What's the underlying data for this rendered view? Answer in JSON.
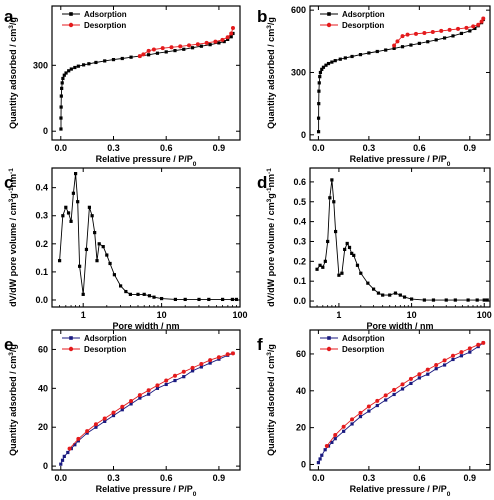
{
  "chart_data": [
    {
      "panel": "a",
      "type": "line",
      "xlabel": "Relative pressure / P/P0",
      "ylabel": "Quantity adsorbed / cm3/g",
      "xlim": [
        -0.05,
        1.02
      ],
      "ylim": [
        -40,
        570
      ],
      "xticks": [
        0.0,
        0.3,
        0.6,
        0.9
      ],
      "xticklabels": [
        "0.0",
        "0.3",
        "0.6",
        "0.9"
      ],
      "yticks": [
        0,
        300
      ],
      "yticklabels": [
        "0",
        "300"
      ],
      "legend": "top-left",
      "series": [
        {
          "name": "Adsorption",
          "color": "#000000",
          "marker": "square",
          "x": [
            0.001,
            0.001,
            0.002,
            0.003,
            0.005,
            0.008,
            0.012,
            0.02,
            0.03,
            0.045,
            0.06,
            0.08,
            0.1,
            0.13,
            0.16,
            0.2,
            0.25,
            0.3,
            0.35,
            0.4,
            0.45,
            0.5,
            0.55,
            0.6,
            0.65,
            0.7,
            0.75,
            0.8,
            0.85,
            0.9,
            0.93,
            0.95,
            0.97,
            0.98
          ],
          "y": [
            10,
            60,
            110,
            160,
            195,
            220,
            240,
            255,
            265,
            275,
            283,
            290,
            296,
            302,
            307,
            313,
            320,
            326,
            331,
            337,
            342,
            348,
            355,
            361,
            367,
            373,
            380,
            387,
            394,
            402,
            408,
            418,
            430,
            445
          ]
        },
        {
          "name": "Desorption",
          "color": "#e41a1c",
          "marker": "circle",
          "x": [
            0.98,
            0.97,
            0.95,
            0.92,
            0.88,
            0.83,
            0.78,
            0.73,
            0.68,
            0.63,
            0.58,
            0.53,
            0.5,
            0.47,
            0.45
          ],
          "y": [
            470,
            445,
            428,
            416,
            408,
            402,
            396,
            391,
            386,
            382,
            378,
            372,
            366,
            350,
            342
          ]
        }
      ]
    },
    {
      "panel": "b",
      "type": "line",
      "xlabel": "Relative pressure / P/P0",
      "ylabel": "Quantity adsorbed / cm3/g",
      "xlim": [
        -0.05,
        1.02
      ],
      "ylim": [
        -25,
        620
      ],
      "xticks": [
        0.0,
        0.3,
        0.6,
        0.9
      ],
      "xticklabels": [
        "0.0",
        "0.3",
        "0.6",
        "0.9"
      ],
      "yticks": [
        0,
        300,
        600
      ],
      "yticklabels": [
        "0",
        "300",
        "600"
      ],
      "legend": "top-left",
      "series": [
        {
          "name": "Adsorption",
          "color": "#000000",
          "marker": "square",
          "x": [
            0.001,
            0.001,
            0.002,
            0.003,
            0.005,
            0.008,
            0.012,
            0.02,
            0.03,
            0.045,
            0.06,
            0.08,
            0.1,
            0.13,
            0.16,
            0.2,
            0.25,
            0.3,
            0.35,
            0.4,
            0.45,
            0.5,
            0.55,
            0.6,
            0.65,
            0.7,
            0.75,
            0.8,
            0.85,
            0.9,
            0.93,
            0.95,
            0.97,
            0.98
          ],
          "y": [
            15,
            80,
            150,
            210,
            250,
            280,
            300,
            315,
            325,
            335,
            343,
            350,
            357,
            364,
            370,
            377,
            386,
            394,
            401,
            408,
            416,
            424,
            432,
            440,
            448,
            457,
            466,
            476,
            488,
            500,
            512,
            525,
            540,
            555
          ]
        },
        {
          "name": "Desorption",
          "color": "#e41a1c",
          "marker": "circle",
          "x": [
            0.98,
            0.97,
            0.95,
            0.92,
            0.88,
            0.83,
            0.78,
            0.73,
            0.68,
            0.63,
            0.58,
            0.53,
            0.5,
            0.47,
            0.45
          ],
          "y": [
            560,
            545,
            530,
            522,
            515,
            510,
            505,
            500,
            495,
            490,
            486,
            482,
            475,
            450,
            430
          ]
        }
      ]
    },
    {
      "panel": "c",
      "type": "line",
      "xlabel": "Pore width / nm",
      "ylabel": "dV/dW pore volume / cm3g-1nm-1",
      "xscale": "log",
      "xlim": [
        0.4,
        100
      ],
      "ylim": [
        -0.025,
        0.47
      ],
      "xticks": [
        1,
        10,
        100
      ],
      "xticklabels": [
        "1",
        "10",
        "100"
      ],
      "yticks": [
        0.0,
        0.1,
        0.2,
        0.3,
        0.4
      ],
      "yticklabels": [
        "0.0",
        "0.1",
        "0.2",
        "0.3",
        "0.4"
      ],
      "series": [
        {
          "name": "",
          "color": "#000000",
          "marker": "square",
          "x": [
            0.5,
            0.55,
            0.6,
            0.65,
            0.7,
            0.75,
            0.8,
            0.85,
            0.9,
            1.0,
            1.1,
            1.2,
            1.3,
            1.4,
            1.5,
            1.6,
            1.8,
            2.0,
            2.2,
            2.5,
            3.0,
            3.5,
            4.0,
            5.0,
            6.0,
            7.0,
            8.0,
            10,
            15,
            20,
            30,
            40,
            60,
            80,
            90
          ],
          "y": [
            0.14,
            0.3,
            0.33,
            0.31,
            0.28,
            0.38,
            0.45,
            0.35,
            0.12,
            0.02,
            0.18,
            0.33,
            0.3,
            0.24,
            0.14,
            0.2,
            0.19,
            0.16,
            0.13,
            0.09,
            0.05,
            0.03,
            0.02,
            0.02,
            0.02,
            0.015,
            0.01,
            0.005,
            0.002,
            0.002,
            0.002,
            0.002,
            0.002,
            0.002,
            0.002
          ]
        }
      ]
    },
    {
      "panel": "d",
      "type": "line",
      "xlabel": "Pore width / nm",
      "ylabel": "dV/dW pore volume / cm3g-1nm-1",
      "xscale": "log",
      "xlim": [
        0.4,
        120
      ],
      "ylim": [
        -0.03,
        0.67
      ],
      "xticks": [
        1,
        10,
        100
      ],
      "xticklabels": [
        "1",
        "10",
        "100"
      ],
      "yticks": [
        0.0,
        0.1,
        0.2,
        0.3,
        0.4,
        0.5,
        0.6
      ],
      "yticklabels": [
        "0.0",
        "0.1",
        "0.2",
        "0.3",
        "0.4",
        "0.5",
        "0.6"
      ],
      "series": [
        {
          "name": "",
          "color": "#000000",
          "marker": "square",
          "x": [
            0.5,
            0.55,
            0.6,
            0.65,
            0.7,
            0.75,
            0.8,
            0.85,
            0.9,
            1.0,
            1.1,
            1.2,
            1.3,
            1.4,
            1.5,
            1.6,
            1.8,
            2.0,
            2.5,
            3.0,
            3.5,
            4.0,
            5.0,
            6.0,
            7.0,
            8.0,
            10,
            15,
            20,
            30,
            40,
            60,
            80,
            100,
            110
          ],
          "y": [
            0.16,
            0.18,
            0.17,
            0.2,
            0.3,
            0.52,
            0.61,
            0.5,
            0.35,
            0.13,
            0.14,
            0.26,
            0.29,
            0.27,
            0.24,
            0.23,
            0.18,
            0.14,
            0.09,
            0.06,
            0.04,
            0.03,
            0.03,
            0.04,
            0.03,
            0.02,
            0.01,
            0.005,
            0.005,
            0.005,
            0.005,
            0.005,
            0.005,
            0.005,
            0.005
          ]
        }
      ]
    },
    {
      "panel": "e",
      "type": "line",
      "xlabel": "Relative pressure / P/P0",
      "ylabel": "Quantity adsorbed / cm3/g",
      "xlim": [
        -0.05,
        1.02
      ],
      "ylim": [
        -2,
        70
      ],
      "xticks": [
        0.0,
        0.3,
        0.6,
        0.9
      ],
      "xticklabels": [
        "0.0",
        "0.3",
        "0.6",
        "0.9"
      ],
      "yticks": [
        0,
        20,
        40,
        60
      ],
      "yticklabels": [
        "0",
        "20",
        "40",
        "60"
      ],
      "legend": "top-left",
      "series": [
        {
          "name": "Adsorption",
          "color": "#1a1a80",
          "marker": "square",
          "x": [
            0.0,
            0.01,
            0.02,
            0.04,
            0.06,
            0.08,
            0.1,
            0.15,
            0.2,
            0.25,
            0.3,
            0.35,
            0.4,
            0.45,
            0.5,
            0.55,
            0.6,
            0.65,
            0.7,
            0.75,
            0.8,
            0.85,
            0.9,
            0.95,
            0.98
          ],
          "y": [
            1,
            3,
            5,
            7,
            9,
            11,
            13,
            17,
            20,
            23,
            26,
            29,
            32,
            35,
            37,
            40,
            42,
            44,
            46,
            49,
            51,
            53,
            55,
            57,
            58
          ]
        },
        {
          "name": "Desorption",
          "color": "#e41a1c",
          "marker": "circle",
          "x": [
            0.98,
            0.95,
            0.9,
            0.85,
            0.8,
            0.75,
            0.7,
            0.65,
            0.6,
            0.55,
            0.5,
            0.45,
            0.4,
            0.35,
            0.3,
            0.25,
            0.2,
            0.15,
            0.1,
            0.05
          ],
          "y": [
            58,
            57.5,
            56,
            54.5,
            52.5,
            50.5,
            48.5,
            46.5,
            44,
            41.5,
            39,
            36.5,
            33.5,
            30.5,
            27.5,
            24.5,
            21.5,
            18,
            14,
            9
          ]
        }
      ]
    },
    {
      "panel": "f",
      "type": "line",
      "xlabel": "Relative pressure / P/P0",
      "ylabel": "Quantity adsorbed / cm3/g",
      "xlim": [
        -0.05,
        1.02
      ],
      "ylim": [
        -3,
        73
      ],
      "xticks": [
        0.0,
        0.3,
        0.6,
        0.9
      ],
      "xticklabels": [
        "0.0",
        "0.3",
        "0.6",
        "0.9"
      ],
      "yticks": [
        0,
        20,
        40,
        60
      ],
      "yticklabels": [
        "0",
        "20",
        "40",
        "60"
      ],
      "legend": "top-left",
      "series": [
        {
          "name": "Adsorption",
          "color": "#1a1a80",
          "marker": "square",
          "x": [
            0.0,
            0.01,
            0.02,
            0.04,
            0.06,
            0.08,
            0.1,
            0.15,
            0.2,
            0.25,
            0.3,
            0.35,
            0.4,
            0.45,
            0.5,
            0.55,
            0.6,
            0.65,
            0.7,
            0.75,
            0.8,
            0.85,
            0.9,
            0.95,
            0.98
          ],
          "y": [
            1,
            3,
            5,
            8,
            10,
            12,
            14,
            18,
            22,
            26,
            29,
            32,
            35,
            38,
            41,
            44,
            47,
            49,
            52,
            54,
            57,
            59,
            61,
            64,
            66
          ]
        },
        {
          "name": "Desorption",
          "color": "#e41a1c",
          "marker": "circle",
          "x": [
            0.98,
            0.95,
            0.9,
            0.85,
            0.8,
            0.75,
            0.7,
            0.65,
            0.6,
            0.55,
            0.5,
            0.45,
            0.4,
            0.35,
            0.3,
            0.25,
            0.2,
            0.15,
            0.1,
            0.05
          ],
          "y": [
            66,
            65,
            63,
            61,
            59,
            56.5,
            54,
            51.5,
            49,
            46.5,
            43.5,
            40.5,
            37.5,
            34.5,
            31.5,
            28,
            24.5,
            20.5,
            16,
            10
          ]
        }
      ]
    }
  ]
}
